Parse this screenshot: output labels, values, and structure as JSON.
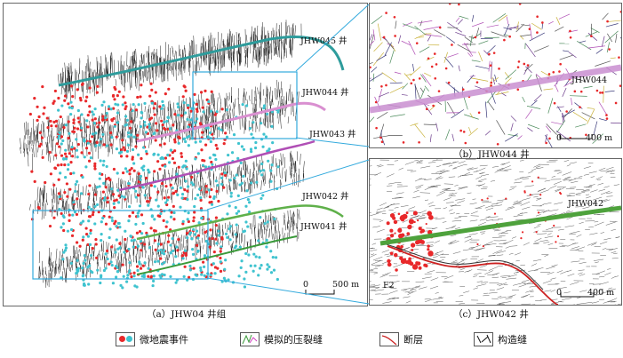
{
  "panels": {
    "a": {
      "caption": "（a）JHW04 井组",
      "wells": [
        "JHW045 井",
        "JHW044 井",
        "JHW043 井",
        "JHW042 井",
        "JHW041 井"
      ],
      "scale_label": "0",
      "scale_value": "500 m"
    },
    "b": {
      "caption": "（b）JHW044 井",
      "well_label": "JHW044",
      "scale_label": "0",
      "scale_value": "400 m"
    },
    "c": {
      "caption": "（c）JHW042 井",
      "well_label": "JHW042",
      "fault_label": "F2",
      "scale_label": "0",
      "scale_value": "400 m"
    }
  },
  "legend": {
    "items": [
      {
        "label": "微地震事件",
        "icon": "microseismic-dots-icon"
      },
      {
        "label": "模拟的压裂缝",
        "icon": "simulated-fracture-icon"
      },
      {
        "label": "断层",
        "icon": "fault-line-icon"
      },
      {
        "label": "构造缝",
        "icon": "structural-fracture-icon"
      }
    ]
  },
  "colors": {
    "microseismic_red": "#e8282a",
    "microseismic_cyan": "#3fc3cf",
    "well_teal": "#2e9c9c",
    "well_pink": "#d98fd0",
    "well_purple": "#b04fb5",
    "well_green": "#5fb04a",
    "inset_box": "#33aadd",
    "fault_red": "#cc2222"
  }
}
